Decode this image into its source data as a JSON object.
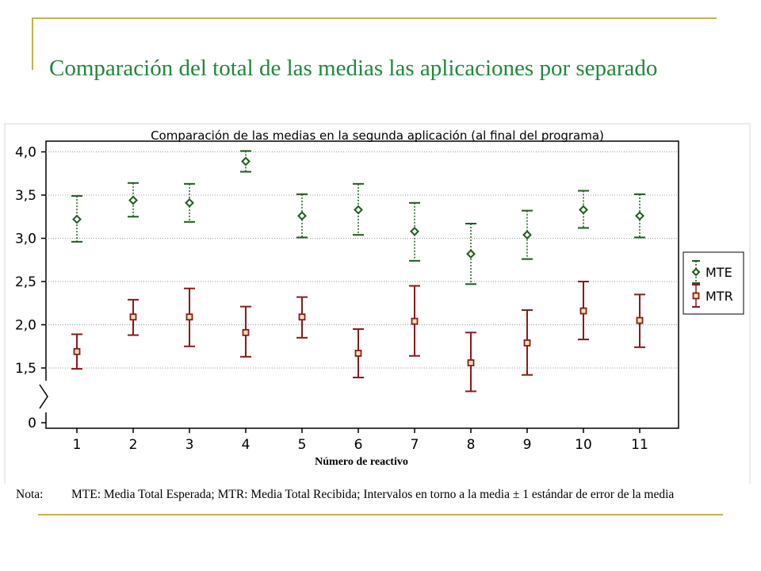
{
  "slide": {
    "title": "Comparación del total de las medias las aplicaciones por separado"
  },
  "footnote": {
    "label": "Nota:",
    "text": "MTE: Media Total Esperada; MTR: Media Total Recibida; Intervalos en torno a la media ± 1 estándar de error de la media"
  },
  "colors": {
    "title": "#1e8a3a",
    "decor_lines": "#c8b24a",
    "mte": "#1a5e1a",
    "mtr": "#8b1a1a",
    "grid": "#9a9a9a"
  },
  "chart_data": {
    "type": "scatter",
    "title": "Comparación de las medias en la segunda aplicación (al final del programa)",
    "xlabel": "Número de reactivo",
    "ylabel": "",
    "categories": [
      "1",
      "2",
      "3",
      "4",
      "5",
      "6",
      "7",
      "8",
      "9",
      "10",
      "11"
    ],
    "y_ticks": [
      "0",
      "1,5",
      "2,0",
      "2,5",
      "3,0",
      "3,5",
      "4,0"
    ],
    "ylim": [
      0,
      4.0
    ],
    "axis_break": "between 0 and 1,5",
    "grid": "horizontal",
    "legend_position": "right",
    "error_bars": "mean ± 1 standard error",
    "series": [
      {
        "name": "MTE",
        "marker": "diamond",
        "line_style": "dotted",
        "values": [
          3.22,
          3.44,
          3.41,
          3.89,
          3.26,
          3.33,
          3.08,
          2.82,
          3.04,
          3.33,
          3.26
        ],
        "lower": [
          2.96,
          3.25,
          3.19,
          3.77,
          3.01,
          3.04,
          2.74,
          2.47,
          2.76,
          3.12,
          3.01
        ],
        "upper": [
          3.49,
          3.64,
          3.63,
          4.01,
          3.51,
          3.63,
          3.41,
          3.17,
          3.32,
          3.55,
          3.51
        ]
      },
      {
        "name": "MTR",
        "marker": "square",
        "line_style": "solid",
        "values": [
          1.69,
          2.09,
          2.09,
          1.91,
          2.09,
          1.67,
          2.04,
          1.56,
          1.79,
          2.16,
          2.05
        ],
        "lower": [
          1.49,
          1.88,
          1.75,
          1.63,
          1.85,
          1.39,
          1.64,
          1.23,
          1.42,
          1.83,
          1.74
        ],
        "upper": [
          1.89,
          2.29,
          2.42,
          2.21,
          2.32,
          1.95,
          2.45,
          1.91,
          2.17,
          2.5,
          2.35
        ]
      }
    ]
  }
}
